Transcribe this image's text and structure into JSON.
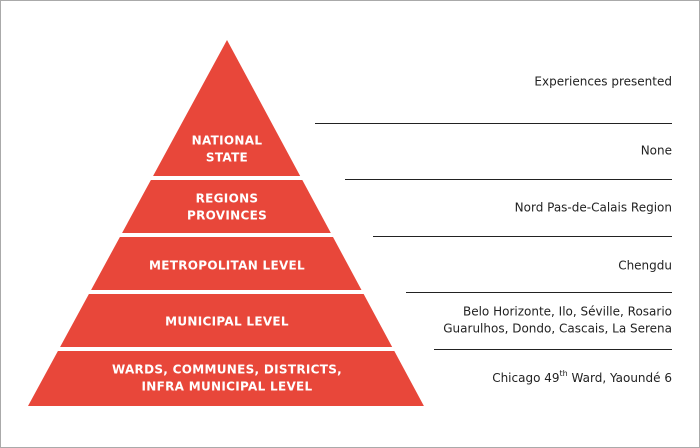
{
  "header": "Experiences presented",
  "levels": [
    {
      "label": [
        "NATIONAL",
        "STATE"
      ],
      "experience": [
        "None"
      ]
    },
    {
      "label": [
        "REGIONS",
        "PROVINCES"
      ],
      "experience": [
        "Nord Pas-de-Calais Region"
      ]
    },
    {
      "label": [
        "METROPOLITAN LEVEL"
      ],
      "experience": [
        "Chengdu"
      ]
    },
    {
      "label": [
        "MUNICIPAL LEVEL"
      ],
      "experience": [
        "Belo Horizonte, Ilo, Séville, Rosario",
        "Guarulhos, Dondo, Cascais, La Serena"
      ]
    },
    {
      "label": [
        "WARDS, COMMUNES, DISTRICTS,",
        "INFRA MUNICIPAL LEVEL"
      ],
      "experience": [
        "Chicago 49",
        "th",
        " Ward, Yaoundé 6"
      ]
    }
  ]
}
